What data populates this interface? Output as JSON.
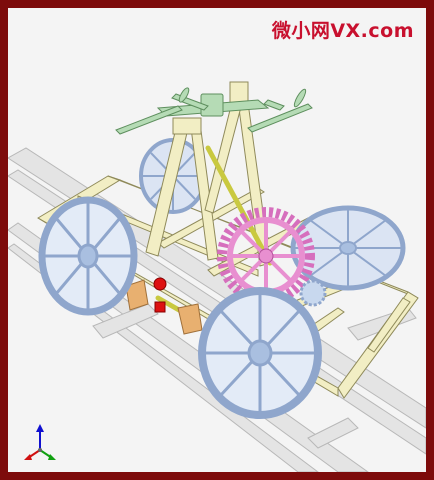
{
  "watermark": {
    "text": "微小网VX.com",
    "color": "#c8102e"
  },
  "colors": {
    "frame_border": "#7d0b0b",
    "background": "#f4f4f4",
    "rail": "#dcdcdc",
    "wheel": "#a9bfe0",
    "chassis": "#f0ecc0",
    "handlebar": "#a8d4a8",
    "gear": "#e88fd0",
    "rod": "#dede5a",
    "bracket": "#e8b070",
    "joint": "#dd1111"
  },
  "axis_triad": {
    "x_color": "#d01010",
    "y_color": "#10a010",
    "z_color": "#1010d0"
  }
}
